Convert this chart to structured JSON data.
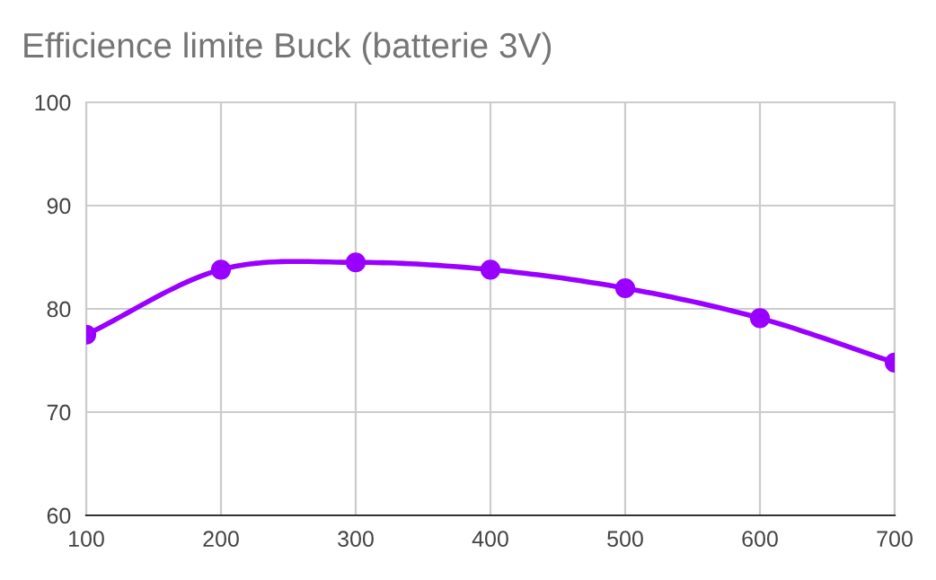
{
  "chart_data": {
    "type": "line",
    "title": "Efficience limite Buck (batterie 3V)",
    "x": [
      100,
      200,
      300,
      400,
      500,
      600,
      700
    ],
    "series": [
      {
        "color": "#9900ff",
        "values": [
          77.5,
          83.8,
          84.5,
          83.8,
          82.0,
          79.1,
          74.8
        ]
      }
    ],
    "xlim": [
      100,
      700
    ],
    "xticks": [
      100,
      200,
      300,
      400,
      500,
      600,
      700
    ],
    "ylim": [
      60,
      100
    ],
    "yticks": [
      60,
      70,
      80,
      90,
      100
    ],
    "grid": true,
    "marker": "circle",
    "line_style": "solid"
  }
}
